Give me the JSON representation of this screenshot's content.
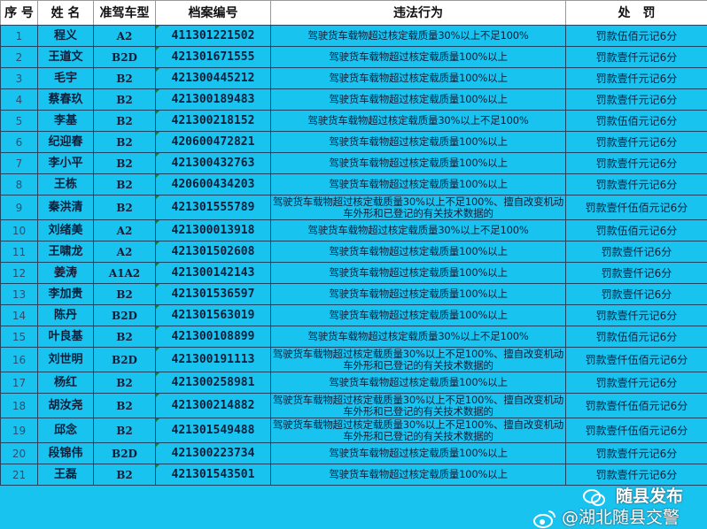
{
  "headers": [
    "序 号",
    "姓 名",
    "准驾车型",
    "档案编号",
    "违法行为",
    "处　罚"
  ],
  "rows": [
    {
      "no": "1",
      "name": "程义",
      "type": "A2",
      "file": "411301221502",
      "violation": "驾驶货车载物超过核定载质量30%以上不足100%",
      "penalty": "罚款伍佰元记6分"
    },
    {
      "no": "2",
      "name": "王道文",
      "type": "B2D",
      "file": "421301671555",
      "violation": "驾驶货车载物超过核定载质量100%以上",
      "penalty": "罚款壹仟元记6分"
    },
    {
      "no": "3",
      "name": "毛宇",
      "type": "B2",
      "file": "421300445212",
      "violation": "驾驶货车载物超过核定载质量100%以上",
      "penalty": "罚款壹仟元记6分"
    },
    {
      "no": "4",
      "name": "蔡春玖",
      "type": "B2",
      "file": "421300189483",
      "violation": "驾驶货车载物超过核定载质量100%以上",
      "penalty": "罚款壹仟元记6分"
    },
    {
      "no": "5",
      "name": "李基",
      "type": "B2",
      "file": "421300218152",
      "violation": "驾驶货车载物超过核定载质量30%以上不足100%",
      "penalty": "罚款伍佰元记6分"
    },
    {
      "no": "6",
      "name": "纪迎春",
      "type": "B2",
      "file": "420600472821",
      "violation": "驾驶货车载物超过核定载质量100%以上",
      "penalty": "罚款壹仟元记6分"
    },
    {
      "no": "7",
      "name": "李小平",
      "type": "B2",
      "file": "421300432763",
      "violation": "驾驶货车载物超过核定载质量100%以上",
      "penalty": "罚款壹仟元记6分"
    },
    {
      "no": "8",
      "name": "王栋",
      "type": "B2",
      "file": "420600434203",
      "violation": "驾驶货车载物超过核定载质量100%以上",
      "penalty": "罚款壹仟元记6分"
    },
    {
      "no": "9",
      "name": "秦洪清",
      "type": "B2",
      "file": "421301555789",
      "violation": "驾驶货车载物超过核定载质量30%以上不足100%、擅自改变机动车外形和已登记的有关技术数据的",
      "penalty": "罚款壹仟伍佰元记6分"
    },
    {
      "no": "10",
      "name": "刘绪美",
      "type": "A2",
      "file": "421300013918",
      "violation": "驾驶货车载物超过核定载质量30%以上不足100%",
      "penalty": "罚款伍佰元记6分"
    },
    {
      "no": "11",
      "name": "王啸龙",
      "type": "A2",
      "file": "421301502608",
      "violation": "驾驶货车载物超过核定载质量100%以上",
      "penalty": "罚款壹仟记6分"
    },
    {
      "no": "12",
      "name": "姜涛",
      "type": "A1A2",
      "file": "421300142143",
      "violation": "驾驶货车载物超过核定载质量100%以上",
      "penalty": "罚款壹仟记6分"
    },
    {
      "no": "13",
      "name": "李加贵",
      "type": "B2",
      "file": "421301536597",
      "violation": "驾驶货车载物超过核定载质量100%以上",
      "penalty": "罚款壹仟记6分"
    },
    {
      "no": "14",
      "name": "陈丹",
      "type": "B2D",
      "file": "421301563019",
      "violation": "驾驶货车载物超过核定载质量100%以上",
      "penalty": "罚款壹仟元记6分"
    },
    {
      "no": "15",
      "name": "叶良基",
      "type": "B2",
      "file": "421300108899",
      "violation": "驾驶货车载物超过核定载质量30%以上不足100%",
      "penalty": "罚款伍佰元记6分"
    },
    {
      "no": "16",
      "name": "刘世明",
      "type": "B2D",
      "file": "421300191113",
      "violation": "驾驶货车载物超过核定载质量30%以上不足100%、擅自改变机动车外形和已登记的有关技术数据的",
      "penalty": "罚款壹仟伍佰元记6分"
    },
    {
      "no": "17",
      "name": "杨红",
      "type": "B2",
      "file": "421300258981",
      "violation": "驾驶货车载物超过核定载质量100%以上",
      "penalty": "罚款壹仟元记6分"
    },
    {
      "no": "18",
      "name": "胡汝尧",
      "type": "B2",
      "file": "421300214882",
      "violation": "驾驶货车载物超过核定载质量30%以上不足100%、擅自改变机动车外形和已登记的有关技术数据的",
      "penalty": "罚款壹仟伍佰元记6分"
    },
    {
      "no": "19",
      "name": "邱念",
      "type": "B2",
      "file": "421301549488",
      "violation": "驾驶货车载物超过核定载质量30%以上不足100%、擅自改变机动车外形和已登记的有关技术数据的",
      "penalty": "罚款壹仟伍佰元记6分"
    },
    {
      "no": "20",
      "name": "段锦伟",
      "type": "B2D",
      "file": "421300223734",
      "violation": "驾驶货车载物超过核定载质量100%以上",
      "penalty": "罚款壹仟元记6分"
    },
    {
      "no": "21",
      "name": "王磊",
      "type": "B2",
      "file": "421301543501",
      "violation": "驾驶货车载物超过核定载质量100%以上",
      "penalty": "罚款壹仟元记6分"
    }
  ],
  "watermark": {
    "wechat_text": "随县发布",
    "weibo_text": "@湖北随县交警"
  },
  "colors": {
    "cell_bg": "#19c3f0",
    "header_bg": "#ffffff",
    "text": "#0c1f3a",
    "grid": "#1d4566"
  }
}
